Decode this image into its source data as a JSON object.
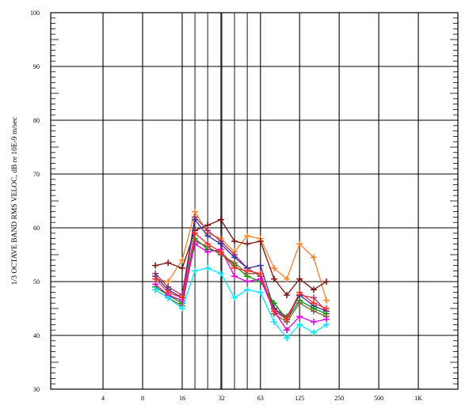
{
  "chart_data": {
    "type": "line",
    "title": "",
    "xlabel": "",
    "ylabel": "1/3 OCTAVE BAND RMS VELOC, dB re 10E-9 m/sec",
    "xscale": "log",
    "xlim": [
      1.6,
      2000
    ],
    "ylim": [
      30,
      100
    ],
    "yticks": [
      30,
      40,
      50,
      60,
      70,
      80,
      90,
      100
    ],
    "xticks": [
      {
        "value": 4,
        "label": "4"
      },
      {
        "value": 8,
        "label": "8"
      },
      {
        "value": 16,
        "label": "16"
      },
      {
        "value": 32,
        "label": "32"
      },
      {
        "value": 63,
        "label": "63"
      },
      {
        "value": 125,
        "label": "125"
      },
      {
        "value": 250,
        "label": "250"
      },
      {
        "value": 500,
        "label": "500"
      },
      {
        "value": 1000,
        "label": "1K"
      }
    ],
    "x": [
      10,
      12.5,
      16,
      20,
      25,
      31.5,
      40,
      50,
      63,
      80,
      100,
      125,
      160,
      200
    ],
    "grid": true,
    "marker": "plus",
    "series": [
      {
        "color": "#ff7f27",
        "values": [
          50.5,
          50.0,
          54.0,
          63.0,
          59.0,
          58.0,
          55.5,
          58.5,
          58.0,
          52.5,
          50.5,
          57.0,
          54.5,
          46.5
        ]
      },
      {
        "color": "#7a1010",
        "values": [
          53.0,
          53.5,
          52.5,
          59.5,
          60.5,
          61.5,
          57.5,
          57.0,
          57.5,
          50.5,
          47.5,
          50.5,
          48.5,
          50.0
        ]
      },
      {
        "color": "#b03060",
        "values": [
          51.5,
          49.0,
          47.5,
          62.0,
          59.5,
          57.5,
          55.0,
          52.5,
          51.0,
          45.0,
          43.5,
          47.5,
          47.0,
          44.5
        ]
      },
      {
        "color": "#333399",
        "values": [
          51.0,
          48.5,
          47.0,
          61.5,
          58.5,
          57.0,
          54.5,
          52.5,
          53.0,
          45.0,
          43.0,
          47.5,
          45.5,
          44.5
        ]
      },
      {
        "color": "#009900",
        "values": [
          49.0,
          47.5,
          46.0,
          58.0,
          56.0,
          55.5,
          53.0,
          51.0,
          50.0,
          46.0,
          43.0,
          46.5,
          45.0,
          44.0
        ]
      },
      {
        "color": "#7f5f3f",
        "values": [
          48.5,
          47.0,
          45.5,
          57.5,
          56.5,
          55.0,
          53.5,
          51.5,
          51.5,
          44.0,
          42.5,
          46.0,
          44.5,
          43.5
        ]
      },
      {
        "color": "#dd00dd",
        "values": [
          49.5,
          47.5,
          46.5,
          57.0,
          55.5,
          56.0,
          51.0,
          50.0,
          50.5,
          44.5,
          41.0,
          43.5,
          42.5,
          43.0
        ]
      },
      {
        "color": "#00e5ff",
        "values": [
          48.5,
          47.0,
          45.0,
          52.0,
          52.5,
          51.5,
          47.0,
          48.5,
          48.0,
          42.5,
          39.5,
          42.0,
          40.5,
          42.0
        ]
      },
      {
        "color": "#ff2a2a",
        "values": [
          50.5,
          48.0,
          47.0,
          59.0,
          57.0,
          55.5,
          52.5,
          52.0,
          51.5,
          44.5,
          43.0,
          48.0,
          46.0,
          45.0
        ]
      }
    ]
  }
}
